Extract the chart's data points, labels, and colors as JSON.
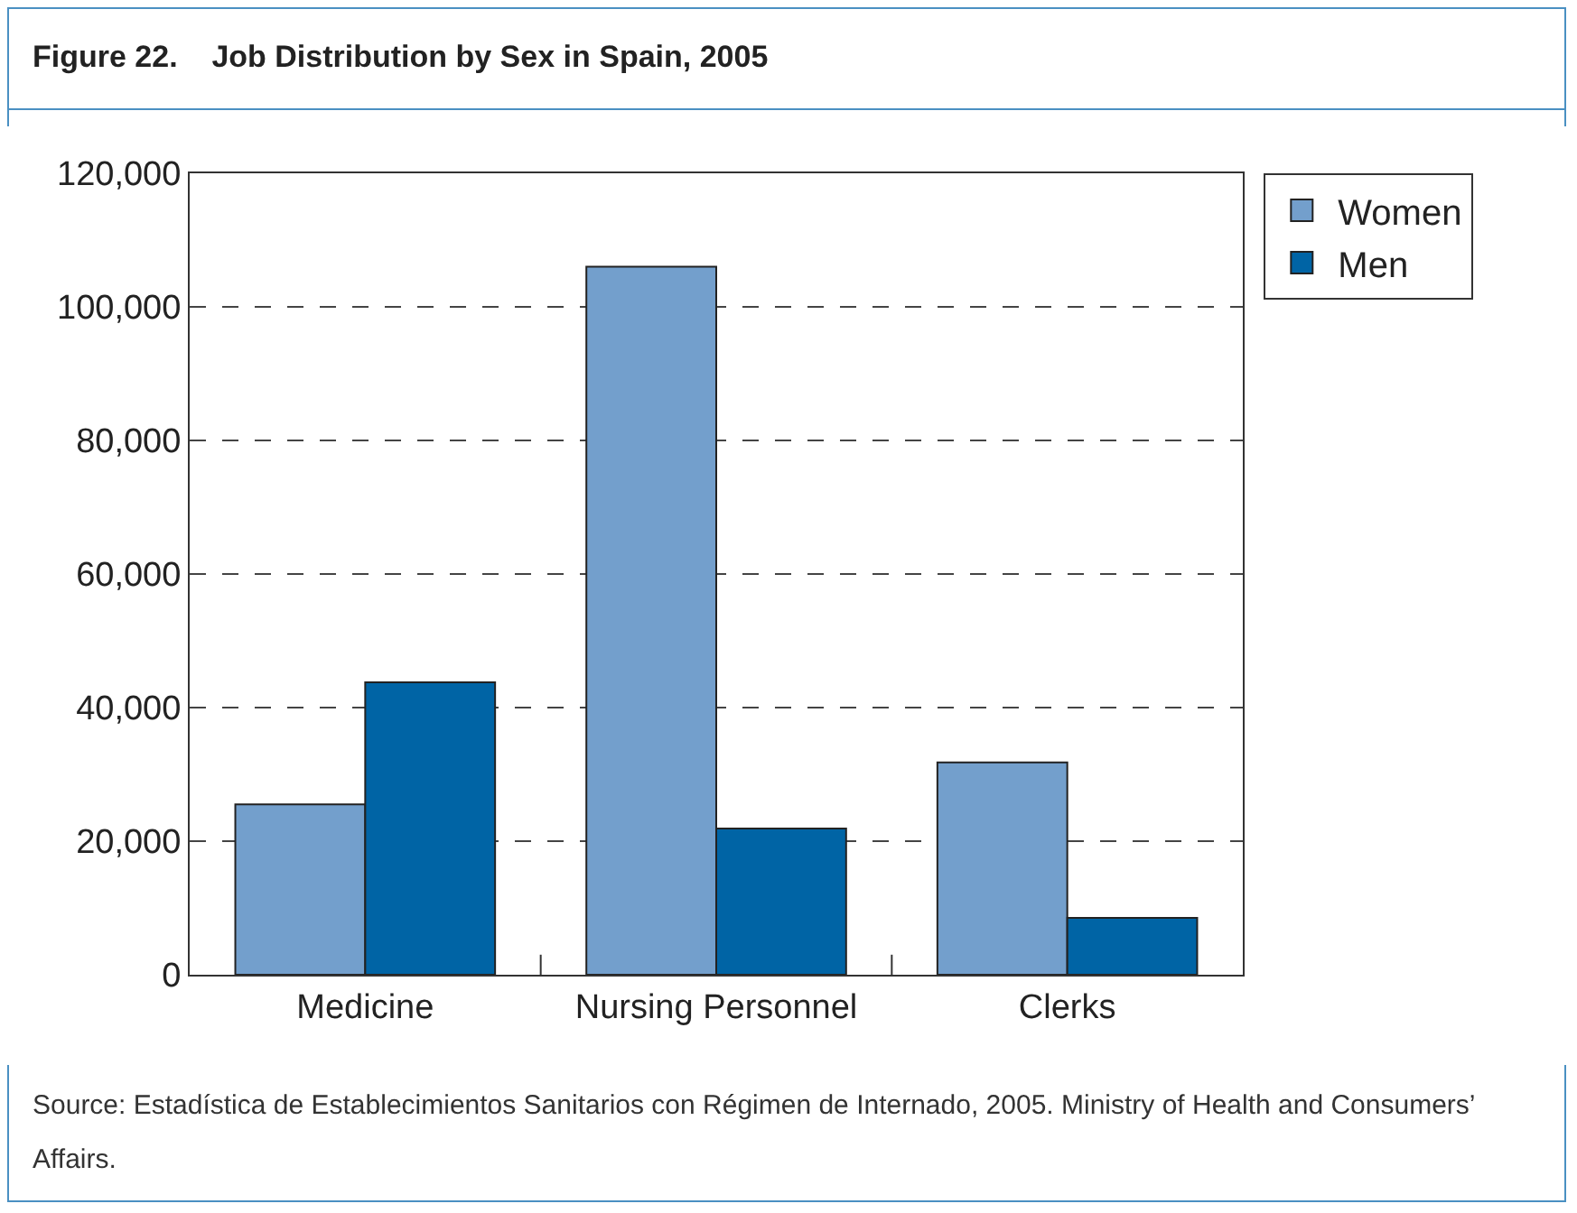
{
  "chart_data": {
    "type": "bar",
    "title": "Figure 22.    Job Distribution by Sex in Spain, 2005",
    "categories": [
      "Medicine",
      "Nursing Personnel",
      "Clerks"
    ],
    "series": [
      {
        "name": "Women",
        "color": "#739fcc",
        "values": [
          25500,
          106000,
          31800
        ]
      },
      {
        "name": "Men",
        "color": "#0064a5",
        "values": [
          43800,
          21900,
          8500
        ]
      }
    ],
    "ylim": [
      0,
      120000
    ],
    "yticks": [
      {
        "value": 0,
        "label": "0"
      },
      {
        "value": 20000,
        "label": "20,000"
      },
      {
        "value": 40000,
        "label": "40,000"
      },
      {
        "value": 60000,
        "label": "60,000"
      },
      {
        "value": 80000,
        "label": "80,000"
      },
      {
        "value": 100000,
        "label": "100,000"
      },
      {
        "value": 120000,
        "label": "120,000"
      }
    ],
    "grid": "y",
    "legend": "top right",
    "annotations": [
      "Source: Estadística de Establecimientos Sanitarios con Régimen de Internado, 2005. Ministry of Health and Consumers’ Affairs."
    ]
  }
}
